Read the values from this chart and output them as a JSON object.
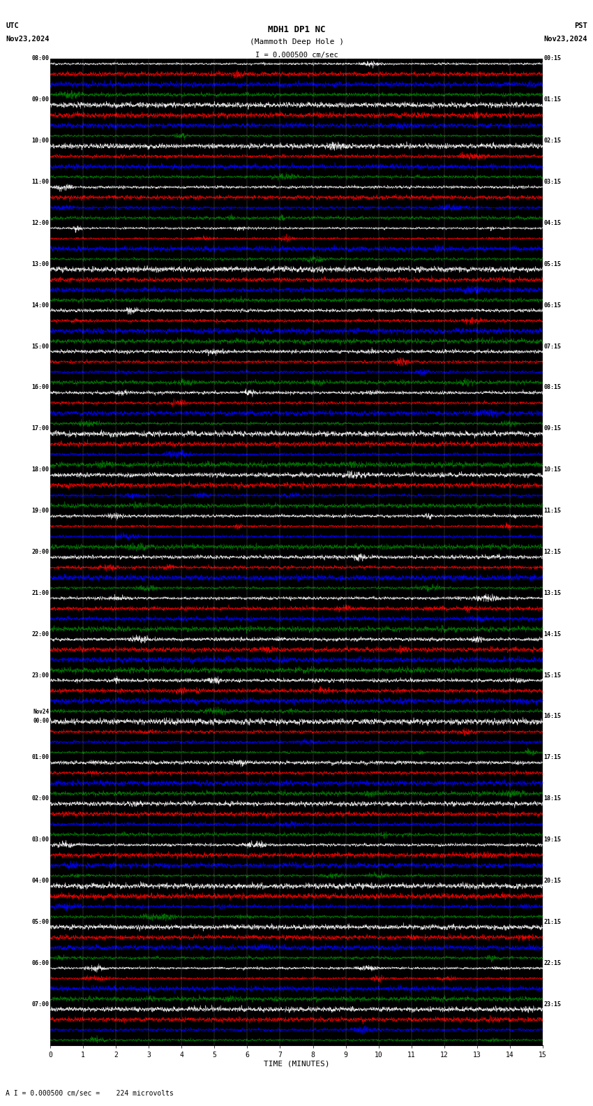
{
  "title_line1": "MDH1 DP1 NC",
  "title_line2": "(Mammoth Deep Hole )",
  "scale_label": "I = 0.000500 cm/sec",
  "utc_label": "UTC",
  "utc_date": "Nov23,2024",
  "pst_label": "PST",
  "pst_date": "Nov23,2024",
  "bottom_label": "A I = 0.000500 cm/sec =    224 microvolts",
  "xlabel": "TIME (MINUTES)",
  "colors": [
    "#ffffff",
    "#ff0000",
    "#0000ff",
    "#008000"
  ],
  "left_times": [
    "08:00",
    "09:00",
    "10:00",
    "11:00",
    "12:00",
    "13:00",
    "14:00",
    "15:00",
    "16:00",
    "17:00",
    "18:00",
    "19:00",
    "20:00",
    "21:00",
    "22:00",
    "23:00",
    "Nov24\n00:00",
    "01:00",
    "02:00",
    "03:00",
    "04:00",
    "05:00",
    "06:00",
    "07:00"
  ],
  "right_times": [
    "00:15",
    "01:15",
    "02:15",
    "03:15",
    "04:15",
    "05:15",
    "06:15",
    "07:15",
    "08:15",
    "09:15",
    "10:15",
    "11:15",
    "12:15",
    "13:15",
    "14:15",
    "15:15",
    "16:15",
    "17:15",
    "18:15",
    "19:15",
    "20:15",
    "21:15",
    "22:15",
    "23:15"
  ],
  "n_rows": 24,
  "n_traces": 4,
  "minutes": 15,
  "fig_width": 8.5,
  "fig_height": 15.84,
  "dpi": 100,
  "n_points": 3000
}
